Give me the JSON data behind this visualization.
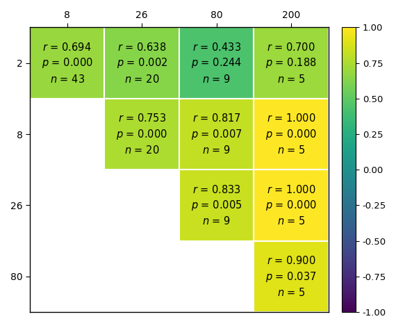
{
  "row_labels": [
    "2",
    "8",
    "26",
    "80"
  ],
  "col_labels": [
    "8",
    "26",
    "80",
    "200"
  ],
  "cells": [
    [
      {
        "r": 0.694,
        "p": 0.0,
        "n": 43,
        "valid": true
      },
      {
        "r": 0.638,
        "p": 0.002,
        "n": 20,
        "valid": true
      },
      {
        "r": 0.433,
        "p": 0.244,
        "n": 9,
        "valid": true
      },
      {
        "r": 0.7,
        "p": 0.188,
        "n": 5,
        "valid": true
      }
    ],
    [
      {
        "r": null,
        "p": null,
        "n": null,
        "valid": false
      },
      {
        "r": 0.753,
        "p": 0.0,
        "n": 20,
        "valid": true
      },
      {
        "r": 0.817,
        "p": 0.007,
        "n": 9,
        "valid": true
      },
      {
        "r": 1.0,
        "p": 0.0,
        "n": 5,
        "valid": true
      }
    ],
    [
      {
        "r": null,
        "p": null,
        "n": null,
        "valid": false
      },
      {
        "r": null,
        "p": null,
        "n": null,
        "valid": false
      },
      {
        "r": 0.833,
        "p": 0.005,
        "n": 9,
        "valid": true
      },
      {
        "r": 1.0,
        "p": 0.0,
        "n": 5,
        "valid": true
      }
    ],
    [
      {
        "r": null,
        "p": null,
        "n": null,
        "valid": false
      },
      {
        "r": null,
        "p": null,
        "n": null,
        "valid": false
      },
      {
        "r": null,
        "p": null,
        "n": null,
        "valid": false
      },
      {
        "r": 0.9,
        "p": 0.037,
        "n": 5,
        "valid": true
      }
    ]
  ],
  "cmap": "viridis",
  "vmin": -1.0,
  "vmax": 1.0,
  "colorbar_ticks": [
    1.0,
    0.75,
    0.5,
    0.25,
    0.0,
    -0.25,
    -0.5,
    -0.75,
    -1.0
  ],
  "background_color": "#ffffff",
  "title_fontsize": 11,
  "tick_fontsize": 12,
  "cell_fontsize": 10.5
}
